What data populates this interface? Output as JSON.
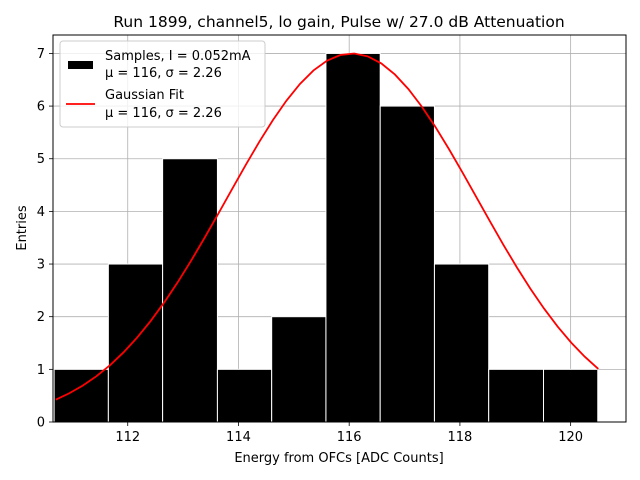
{
  "chart_data": {
    "type": "bar",
    "title": "Run 1899, channel5, lo gain, Pulse w/ 27.0 dB Attenuation",
    "xlabel": "Energy from OFCs [ADC Counts]",
    "ylabel": "Entries",
    "xlim": [
      110.65,
      121.0
    ],
    "ylim": [
      0,
      7.35
    ],
    "xticks": [
      112,
      114,
      116,
      118,
      120
    ],
    "yticks": [
      0,
      1,
      2,
      3,
      4,
      5,
      6,
      7
    ],
    "grid": true,
    "legend_position": "top-left",
    "histogram": {
      "name": "Samples, I = 0.052mA",
      "stats": "μ = 116, σ = 2.26",
      "color": "#000000",
      "bin_edges": [
        110.67,
        111.65,
        112.63,
        113.62,
        114.6,
        115.58,
        116.56,
        117.54,
        118.52,
        119.51,
        120.49
      ],
      "counts": [
        1,
        3,
        5,
        1,
        2,
        7,
        6,
        3,
        1,
        1
      ]
    },
    "fit": {
      "name": "Gaussian Fit",
      "stats": "μ = 116, σ = 2.26",
      "color": "#ff0000",
      "amplitude": 7.0,
      "mu": 116.05,
      "sigma": 2.26,
      "x_range": [
        110.7,
        120.5
      ]
    }
  }
}
